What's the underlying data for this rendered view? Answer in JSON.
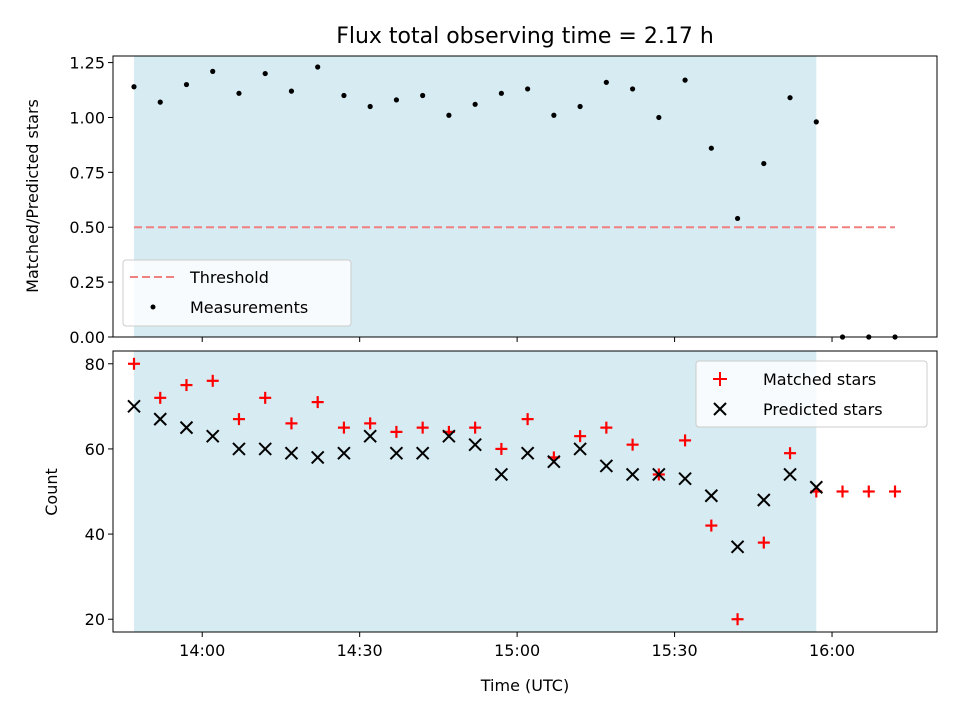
{
  "chart_data": [
    {
      "type": "scatter",
      "title": "Flux total observing time = 2.17 h",
      "xlabel": "",
      "ylabel": "Matched/Predicted stars",
      "xlim": [
        "13:43",
        "16:20"
      ],
      "ylim": [
        0,
        1.28
      ],
      "y_ticks": [
        0.0,
        0.25,
        0.5,
        0.75,
        1.0,
        1.25
      ],
      "y_tick_labels": [
        "0.00",
        "0.25",
        "0.50",
        "0.75",
        "1.00",
        "1.25"
      ],
      "x_ticks": [
        "14:00",
        "14:30",
        "15:00",
        "15:30",
        "16:00"
      ],
      "x_tick_labels_visible": false,
      "shaded_span": {
        "start": "13:47",
        "end": "15:57",
        "color": "#add8e6"
      },
      "threshold": {
        "name": "Threshold",
        "value": 0.5,
        "x_start": "13:47",
        "x_end": "16:12",
        "color": "#f08080"
      },
      "series": [
        {
          "name": "Measurements",
          "color": "#000000",
          "x": [
            "13:47",
            "13:52",
            "13:57",
            "14:02",
            "14:07",
            "14:12",
            "14:17",
            "14:22",
            "14:27",
            "14:32",
            "14:37",
            "14:42",
            "14:47",
            "14:52",
            "14:57",
            "15:02",
            "15:07",
            "15:12",
            "15:17",
            "15:22",
            "15:27",
            "15:32",
            "15:37",
            "15:42",
            "15:47",
            "15:52",
            "15:57",
            "16:02",
            "16:07",
            "16:12"
          ],
          "y": [
            1.14,
            1.07,
            1.15,
            1.21,
            1.11,
            1.2,
            1.12,
            1.23,
            1.1,
            1.05,
            1.08,
            1.1,
            1.01,
            1.06,
            1.11,
            1.13,
            1.01,
            1.05,
            1.16,
            1.13,
            1.0,
            1.17,
            0.86,
            0.54,
            0.79,
            1.09,
            0.98,
            0.0,
            0.0,
            0.0
          ]
        }
      ],
      "legend_position": "lower-left",
      "grid": false
    },
    {
      "type": "scatter",
      "title": "",
      "xlabel": "Time (UTC)",
      "ylabel": "Count",
      "xlim": [
        "13:43",
        "16:20"
      ],
      "ylim": [
        17,
        83
      ],
      "y_ticks": [
        20,
        40,
        60,
        80
      ],
      "y_tick_labels": [
        "20",
        "40",
        "60",
        "80"
      ],
      "x_ticks": [
        "14:00",
        "14:30",
        "15:00",
        "15:30",
        "16:00"
      ],
      "x_tick_labels": [
        "14:00",
        "14:30",
        "15:00",
        "15:30",
        "16:00"
      ],
      "shaded_span": {
        "start": "13:47",
        "end": "15:57",
        "color": "#add8e6"
      },
      "series": [
        {
          "name": "Matched stars",
          "marker": "plus",
          "color": "#ff0000",
          "x": [
            "13:47",
            "13:52",
            "13:57",
            "14:02",
            "14:07",
            "14:12",
            "14:17",
            "14:22",
            "14:27",
            "14:32",
            "14:37",
            "14:42",
            "14:47",
            "14:52",
            "14:57",
            "15:02",
            "15:07",
            "15:12",
            "15:17",
            "15:22",
            "15:27",
            "15:32",
            "15:37",
            "15:42",
            "15:47",
            "15:52",
            "15:57",
            "16:02",
            "16:07",
            "16:12"
          ],
          "y": [
            80,
            72,
            75,
            76,
            67,
            72,
            66,
            71,
            65,
            66,
            64,
            65,
            64,
            65,
            60,
            67,
            58,
            63,
            65,
            61,
            54,
            62,
            42,
            20,
            38,
            59,
            50,
            50,
            50,
            50
          ]
        },
        {
          "name": "Predicted stars",
          "marker": "x",
          "color": "#000000",
          "x": [
            "13:47",
            "13:52",
            "13:57",
            "14:02",
            "14:07",
            "14:12",
            "14:17",
            "14:22",
            "14:27",
            "14:32",
            "14:37",
            "14:42",
            "14:47",
            "14:52",
            "14:57",
            "15:02",
            "15:07",
            "15:12",
            "15:17",
            "15:22",
            "15:27",
            "15:32",
            "15:37",
            "15:42",
            "15:47",
            "15:52",
            "15:57"
          ],
          "y": [
            70,
            67,
            65,
            63,
            60,
            60,
            59,
            58,
            59,
            63,
            59,
            59,
            63,
            61,
            54,
            59,
            57,
            60,
            56,
            54,
            54,
            53,
            49,
            37,
            48,
            54,
            51
          ]
        }
      ],
      "legend_position": "top-right",
      "grid": false
    }
  ]
}
